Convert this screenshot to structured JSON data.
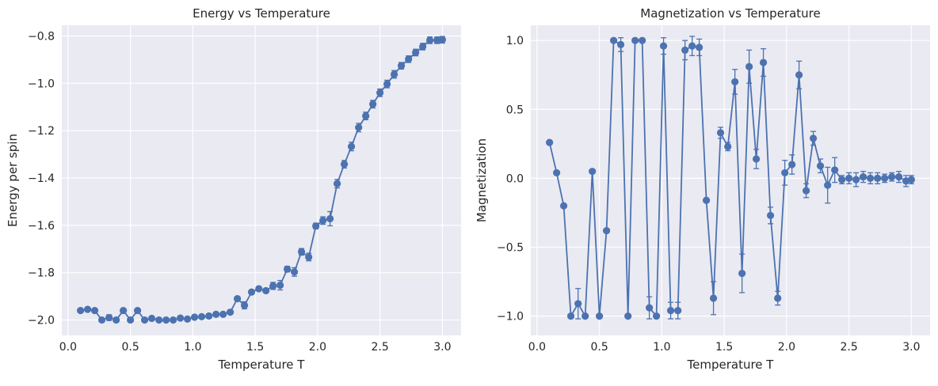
{
  "chart_data": [
    {
      "type": "line",
      "title": "Energy vs Temperature",
      "xlabel": "Temperature T",
      "ylabel": "Energy per spin",
      "xlim": [
        -0.05,
        3.15
      ],
      "ylim": [
        -2.065,
        -0.755
      ],
      "xticks": [
        0.0,
        0.5,
        1.0,
        1.5,
        2.0,
        2.5,
        3.0
      ],
      "xtick_labels": [
        "0.0",
        "0.5",
        "1.0",
        "1.5",
        "2.0",
        "2.5",
        "3.0"
      ],
      "yticks": [
        -2.0,
        -1.8,
        -1.6,
        -1.4,
        -1.2,
        -1.0,
        -0.8
      ],
      "ytick_labels": [
        "−2.0",
        "−1.8",
        "−1.6",
        "−1.4",
        "−1.2",
        "−1.0",
        "−0.8"
      ],
      "grid": true,
      "marker": "circle",
      "color": "#4c72b0",
      "x": [
        0.1,
        0.157,
        0.214,
        0.271,
        0.329,
        0.386,
        0.443,
        0.5,
        0.557,
        0.614,
        0.671,
        0.729,
        0.786,
        0.843,
        0.9,
        0.957,
        1.014,
        1.071,
        1.129,
        1.186,
        1.243,
        1.3,
        1.357,
        1.414,
        1.471,
        1.529,
        1.586,
        1.643,
        1.7,
        1.757,
        1.814,
        1.871,
        1.929,
        1.986,
        2.043,
        2.1,
        2.157,
        2.214,
        2.271,
        2.329,
        2.386,
        2.443,
        2.5,
        2.557,
        2.614,
        2.671,
        2.729,
        2.786,
        2.843,
        2.9,
        2.957,
        3.0
      ],
      "y": [
        -1.96,
        -1.955,
        -1.96,
        -2.0,
        -1.99,
        -2.0,
        -1.96,
        -2.0,
        -1.96,
        -2.0,
        -1.993,
        -2.0,
        -2.0,
        -2.0,
        -1.992,
        -1.996,
        -1.988,
        -1.986,
        -1.983,
        -1.976,
        -1.976,
        -1.967,
        -1.91,
        -1.938,
        -1.882,
        -1.868,
        -1.876,
        -1.856,
        -1.853,
        -1.785,
        -1.797,
        -1.712,
        -1.734,
        -1.603,
        -1.58,
        -1.572,
        -1.424,
        -1.342,
        -1.267,
        -1.187,
        -1.138,
        -1.088,
        -1.04,
        -1.003,
        -0.962,
        -0.926,
        -0.898,
        -0.87,
        -0.845,
        -0.818,
        -0.818,
        -0.816
      ],
      "yerr": [
        0.004,
        0.004,
        0.004,
        0.004,
        0.012,
        0.004,
        0.004,
        0.004,
        0.004,
        0.004,
        0.004,
        0.004,
        0.004,
        0.004,
        0.006,
        0.004,
        0.006,
        0.006,
        0.006,
        0.006,
        0.006,
        0.008,
        0.008,
        0.015,
        0.006,
        0.008,
        0.008,
        0.015,
        0.02,
        0.012,
        0.018,
        0.014,
        0.016,
        0.012,
        0.016,
        0.03,
        0.018,
        0.016,
        0.018,
        0.018,
        0.016,
        0.016,
        0.016,
        0.016,
        0.016,
        0.014,
        0.014,
        0.014,
        0.014,
        0.014,
        0.014,
        0.014
      ]
    },
    {
      "type": "line",
      "title": "Magnetization vs Temperature",
      "xlabel": "Temperature T",
      "ylabel": "Magnetization",
      "xlim": [
        -0.05,
        3.15
      ],
      "ylim": [
        -1.14,
        1.11
      ],
      "xticks": [
        0.0,
        0.5,
        1.0,
        1.5,
        2.0,
        2.5,
        3.0
      ],
      "xtick_labels": [
        "0.0",
        "0.5",
        "1.0",
        "1.5",
        "2.0",
        "2.5",
        "3.0"
      ],
      "yticks": [
        -1.0,
        -0.5,
        0.0,
        0.5,
        1.0
      ],
      "ytick_labels": [
        "−1.0",
        "−0.5",
        "0.0",
        "0.5",
        "1.0"
      ],
      "grid": true,
      "marker": "circle",
      "color": "#4c72b0",
      "x": [
        0.1,
        0.157,
        0.214,
        0.271,
        0.329,
        0.386,
        0.443,
        0.5,
        0.557,
        0.614,
        0.671,
        0.729,
        0.786,
        0.843,
        0.9,
        0.957,
        1.014,
        1.071,
        1.129,
        1.186,
        1.243,
        1.3,
        1.357,
        1.414,
        1.471,
        1.529,
        1.586,
        1.643,
        1.7,
        1.757,
        1.814,
        1.871,
        1.929,
        1.986,
        2.043,
        2.1,
        2.157,
        2.214,
        2.271,
        2.329,
        2.386,
        2.443,
        2.5,
        2.557,
        2.614,
        2.671,
        2.729,
        2.786,
        2.843,
        2.9,
        2.957,
        3.0
      ],
      "y": [
        0.26,
        0.04,
        -0.2,
        -1.0,
        -0.91,
        -1.0,
        0.05,
        -1.0,
        -0.38,
        1.0,
        0.97,
        -1.0,
        1.0,
        1.0,
        -0.94,
        -1.0,
        0.96,
        -0.96,
        -0.96,
        0.93,
        0.96,
        0.95,
        -0.16,
        -0.87,
        0.33,
        0.23,
        0.7,
        -0.69,
        0.81,
        0.14,
        0.84,
        -0.27,
        -0.87,
        0.04,
        0.1,
        0.75,
        -0.09,
        0.29,
        0.09,
        -0.05,
        0.06,
        -0.01,
        0.0,
        -0.01,
        0.01,
        0.0,
        0.0,
        0.0,
        0.01,
        0.01,
        -0.02,
        -0.01
      ],
      "yerr": [
        0.0,
        0.0,
        0.0,
        0.0,
        0.11,
        0.0,
        0.0,
        0.0,
        0.0,
        0.0,
        0.05,
        0.0,
        0.0,
        0.0,
        0.08,
        0.0,
        0.06,
        0.06,
        0.06,
        0.07,
        0.07,
        0.06,
        0.0,
        0.12,
        0.04,
        0.03,
        0.09,
        0.14,
        0.12,
        0.07,
        0.1,
        0.06,
        0.05,
        0.09,
        0.07,
        0.1,
        0.05,
        0.05,
        0.05,
        0.13,
        0.09,
        0.03,
        0.04,
        0.05,
        0.04,
        0.04,
        0.04,
        0.03,
        0.03,
        0.04,
        0.04,
        0.03
      ]
    }
  ]
}
